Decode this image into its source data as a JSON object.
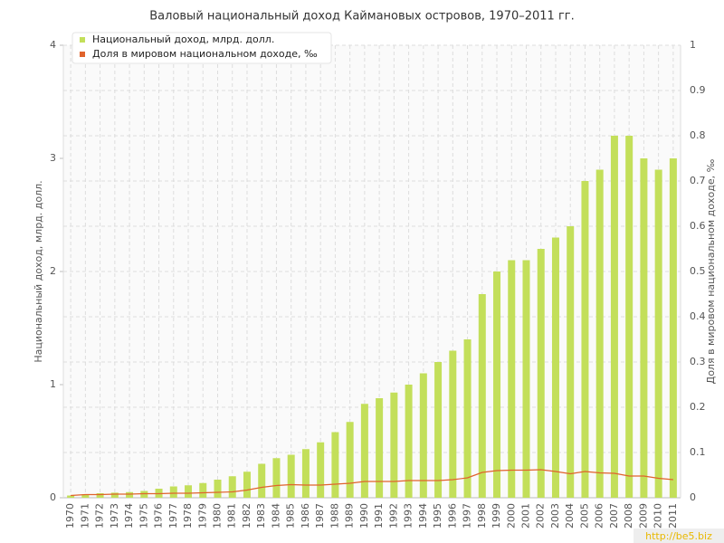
{
  "chart_data": {
    "type": "bar_line",
    "title": "Валовый национальный доход Каймановых островов, 1970–2011 гг.",
    "y_label": "Национальный доход, млрд. долл.",
    "y2_label": "Доля в мировом национальном доходе, ‰",
    "watermark": "http://be5.biz",
    "categories": [
      "1970",
      "1971",
      "1972",
      "1973",
      "1974",
      "1975",
      "1976",
      "1977",
      "1978",
      "1979",
      "1980",
      "1981",
      "1982",
      "1983",
      "1984",
      "1985",
      "1986",
      "1987",
      "1988",
      "1989",
      "1990",
      "1991",
      "1992",
      "1993",
      "1994",
      "1995",
      "1996",
      "1997",
      "1998",
      "1999",
      "2000",
      "2001",
      "2002",
      "2003",
      "2004",
      "2005",
      "2006",
      "2007",
      "2008",
      "2009",
      "2010",
      "2011"
    ],
    "series": [
      {
        "name": "Национальный доход, млрд. долл.",
        "color": "#c3df5a",
        "kind": "bar",
        "values": [
          0.02,
          0.03,
          0.04,
          0.045,
          0.05,
          0.06,
          0.08,
          0.1,
          0.11,
          0.13,
          0.16,
          0.19,
          0.23,
          0.3,
          0.35,
          0.38,
          0.43,
          0.49,
          0.58,
          0.67,
          0.83,
          0.88,
          0.93,
          1.0,
          1.1,
          1.2,
          1.3,
          1.4,
          1.8,
          2.0,
          2.1,
          2.1,
          2.2,
          2.3,
          2.4,
          2.8,
          2.9,
          3.2,
          3.2,
          3.0,
          2.9,
          3.0
        ]
      },
      {
        "name": "Доля в мировом национальном доходе, ‰",
        "color": "#e0632c",
        "kind": "line",
        "axis": "y2",
        "values": [
          0.005,
          0.007,
          0.007,
          0.008,
          0.008,
          0.009,
          0.009,
          0.01,
          0.01,
          0.011,
          0.012,
          0.013,
          0.017,
          0.023,
          0.027,
          0.029,
          0.028,
          0.028,
          0.03,
          0.032,
          0.036,
          0.036,
          0.036,
          0.038,
          0.038,
          0.038,
          0.04,
          0.044,
          0.056,
          0.06,
          0.061,
          0.061,
          0.062,
          0.058,
          0.053,
          0.058,
          0.055,
          0.054,
          0.048,
          0.048,
          0.043,
          0.04
        ]
      }
    ],
    "ylim": [
      0,
      4
    ],
    "yticks": [
      0,
      1,
      2,
      3,
      4
    ],
    "y2lim": [
      0,
      1
    ],
    "y2ticks": [
      0,
      0.1,
      0.2,
      0.3,
      0.4,
      0.5,
      0.6,
      0.7,
      0.8,
      0.9,
      1
    ],
    "grid": true,
    "legend": "top-left"
  }
}
